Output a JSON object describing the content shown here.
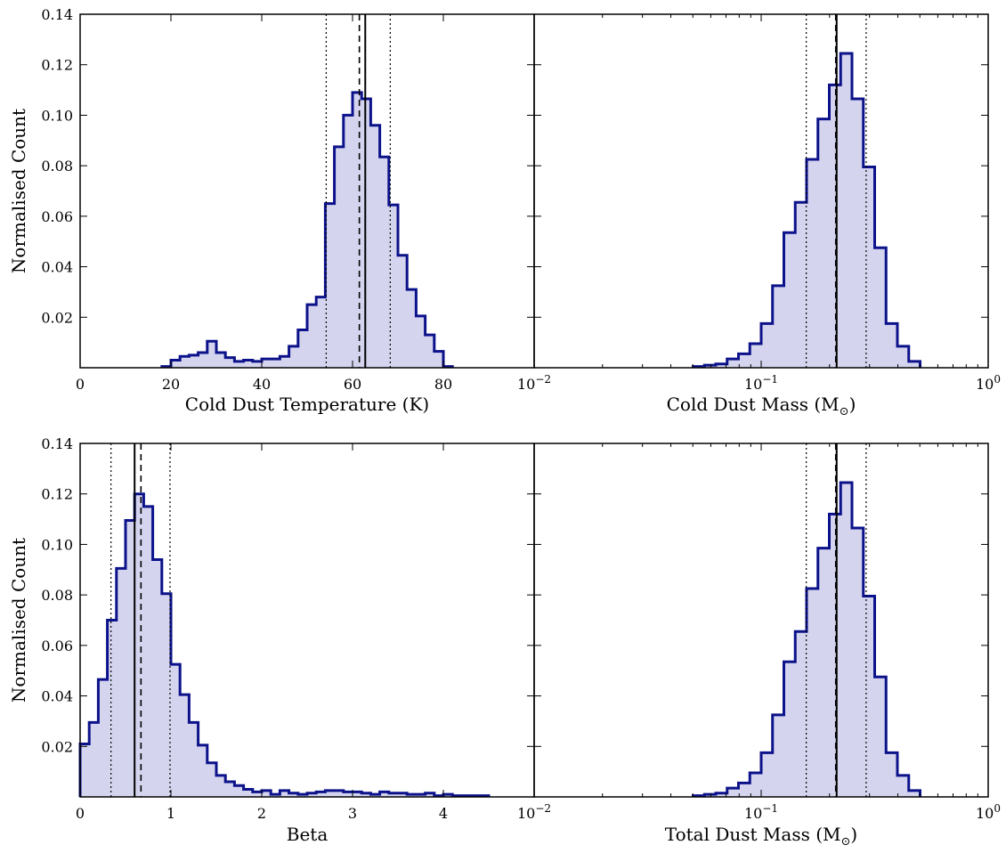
{
  "figure": {
    "y_tick_labels": [
      "0.02",
      "0.04",
      "0.06",
      "0.08",
      "0.10",
      "0.12",
      "0.14"
    ],
    "y_tick_values": [
      0.02,
      0.04,
      0.06,
      0.08,
      0.1,
      0.12,
      0.14
    ],
    "ylabel": "Normalised Count"
  },
  "chart_data": [
    {
      "id": "temperature",
      "type": "histogram",
      "xlabel": "Cold Dust Temperature (K)",
      "xlabel_unit": "",
      "xscale": "linear",
      "xlim": [
        0,
        100
      ],
      "ylim": [
        0,
        0.14
      ],
      "x_tick_values": [
        0,
        20,
        40,
        60,
        80
      ],
      "x_tick_labels": [
        "0",
        "20",
        "40",
        "60",
        "80"
      ],
      "series": [
        {
          "bin_edges": [
            18,
            20,
            22,
            24,
            26,
            28,
            30,
            32,
            34,
            36,
            38,
            40,
            42,
            44,
            46,
            48,
            50,
            52,
            54,
            56,
            58,
            60,
            62,
            64,
            66,
            68,
            70,
            72,
            74,
            76,
            78,
            80,
            82
          ],
          "counts": [
            0.0005,
            0.003,
            0.0045,
            0.005,
            0.006,
            0.0105,
            0.006,
            0.004,
            0.0025,
            0.003,
            0.0025,
            0.0035,
            0.0035,
            0.0045,
            0.0085,
            0.015,
            0.025,
            0.028,
            0.065,
            0.0875,
            0.1,
            0.109,
            0.1065,
            0.096,
            0.0835,
            0.0645,
            0.0445,
            0.031,
            0.0205,
            0.013,
            0.0065,
            0.0005
          ]
        }
      ],
      "lines": {
        "solid": [
          62.8
        ],
        "dashed": [
          61.5
        ],
        "dotted": [
          54.2,
          68.3
        ]
      }
    },
    {
      "id": "cold-mass",
      "type": "histogram",
      "xlabel": "Cold Dust Mass (M",
      "xlabel_unit": "⊙",
      "xscale": "log",
      "xlim": [
        0.01,
        1
      ],
      "ylim": [
        0,
        0.14
      ],
      "x_tick_values": [
        0.01,
        0.1,
        1
      ],
      "x_tick_labels": [
        [
          "10",
          "−2"
        ],
        [
          "10",
          "−1"
        ],
        [
          "10",
          "0"
        ]
      ],
      "series": [
        {
          "bin_edges_log10": [
            -1.3,
            -1.25,
            -1.2,
            -1.15,
            -1.1,
            -1.05,
            -1.0,
            -0.95,
            -0.9,
            -0.85,
            -0.8,
            -0.75,
            -0.7,
            -0.65,
            -0.6,
            -0.55,
            -0.5,
            -0.45,
            -0.4,
            -0.35,
            -0.3
          ],
          "counts": [
            0.0005,
            0.001,
            0.0015,
            0.0035,
            0.0055,
            0.0095,
            0.0175,
            0.0325,
            0.0535,
            0.0655,
            0.0825,
            0.0985,
            0.112,
            0.1245,
            0.1065,
            0.0795,
            0.0475,
            0.0175,
            0.0085,
            0.0025
          ]
        }
      ],
      "lines": {
        "solid": [
          0.215
        ],
        "dashed": [
          0.213
        ],
        "dotted": [
          0.158,
          0.29
        ]
      }
    },
    {
      "id": "beta",
      "type": "histogram",
      "xlabel": "Beta",
      "xlabel_unit": "",
      "xscale": "linear",
      "xlim": [
        0,
        5
      ],
      "ylim": [
        0,
        0.14
      ],
      "x_tick_values": [
        0,
        1,
        2,
        3,
        4
      ],
      "x_tick_labels": [
        "0",
        "1",
        "2",
        "3",
        "4"
      ],
      "series": [
        {
          "bin_edges": [
            0,
            0.1,
            0.2,
            0.3,
            0.4,
            0.5,
            0.6,
            0.7,
            0.8,
            0.9,
            1.0,
            1.1,
            1.2,
            1.3,
            1.4,
            1.5,
            1.6,
            1.7,
            1.8,
            1.9,
            2.0,
            2.1,
            2.2,
            2.3,
            2.4,
            2.5,
            2.6,
            2.7,
            2.8,
            2.9,
            3.0,
            3.1,
            3.2,
            3.3,
            3.4,
            3.5,
            3.6,
            3.7,
            3.8,
            3.9,
            4.0,
            4.1,
            4.2,
            4.3,
            4.4,
            4.5
          ],
          "counts": [
            0.021,
            0.0295,
            0.0465,
            0.07,
            0.0905,
            0.1095,
            0.12,
            0.115,
            0.094,
            0.0805,
            0.0525,
            0.0405,
            0.0295,
            0.0205,
            0.0135,
            0.0085,
            0.006,
            0.0045,
            0.003,
            0.002,
            0.0025,
            0.001,
            0.0025,
            0.0015,
            0.001,
            0.0015,
            0.002,
            0.0025,
            0.0025,
            0.002,
            0.002,
            0.0015,
            0.001,
            0.002,
            0.0015,
            0.0015,
            0.001,
            0.001,
            0.0015,
            0.0005,
            0.001,
            0.0005,
            0.0005,
            0.0005,
            0.0005
          ]
        }
      ],
      "lines": {
        "solid": [
          0.6
        ],
        "dashed": [
          0.67
        ],
        "dotted": [
          0.34,
          0.99
        ]
      }
    },
    {
      "id": "total-mass",
      "type": "histogram",
      "xlabel": "Total Dust Mass (M",
      "xlabel_unit": "⊙",
      "xscale": "log",
      "xlim": [
        0.01,
        1
      ],
      "ylim": [
        0,
        0.14
      ],
      "x_tick_values": [
        0.01,
        0.1,
        1
      ],
      "x_tick_labels": [
        [
          "10",
          "−2"
        ],
        [
          "10",
          "−1"
        ],
        [
          "10",
          "0"
        ]
      ],
      "series": [
        {
          "bin_edges_log10": [
            -1.3,
            -1.25,
            -1.2,
            -1.15,
            -1.1,
            -1.05,
            -1.0,
            -0.95,
            -0.9,
            -0.85,
            -0.8,
            -0.75,
            -0.7,
            -0.65,
            -0.6,
            -0.55,
            -0.5,
            -0.45,
            -0.4,
            -0.35,
            -0.3
          ],
          "counts": [
            0.0005,
            0.001,
            0.0015,
            0.0035,
            0.0055,
            0.0095,
            0.0175,
            0.0325,
            0.0535,
            0.0655,
            0.0825,
            0.0985,
            0.112,
            0.1245,
            0.1065,
            0.0795,
            0.0475,
            0.0175,
            0.0085,
            0.0025
          ]
        }
      ],
      "lines": {
        "solid": [
          0.215
        ],
        "dashed": [
          0.213
        ],
        "dotted": [
          0.158,
          0.29
        ]
      }
    }
  ],
  "style": {
    "fill_color": "#d4d4ef",
    "edge_color": "#0c128a",
    "line_color": "#000000"
  }
}
